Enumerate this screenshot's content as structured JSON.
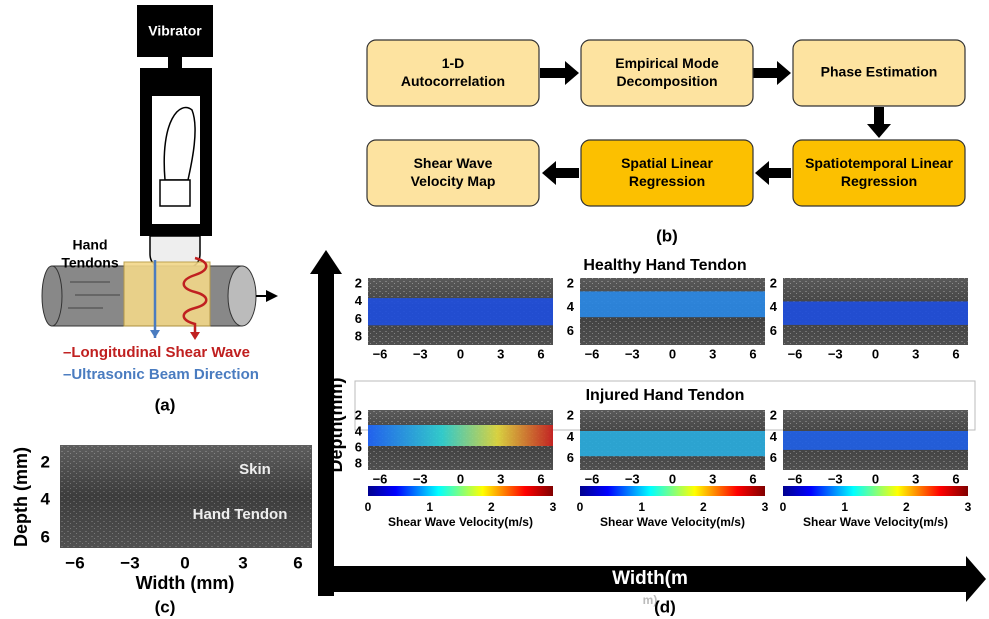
{
  "panel_a": {
    "vibrator": "Vibrator",
    "hand_tendons": [
      "Hand",
      "Tendons"
    ],
    "legend": [
      "Longitudinal Shear Wave",
      "Ultrasonic Beam Direction"
    ],
    "label": "(a)"
  },
  "panel_b": {
    "nodes": [
      "1-D Autocorrelation",
      "Empirical Mode Decomposition",
      "Phase Estimation",
      "Spatiotemporal Linear Regression",
      "Spatial Linear Regression",
      "Shear Wave Velocity Map"
    ],
    "label": "(b)"
  },
  "panel_c": {
    "annotations": [
      "Skin",
      "Hand Tendon"
    ],
    "y_axis_label": "Depth (mm)",
    "x_axis_label": "Width (mm)",
    "yticks": [
      "2",
      "4",
      "6"
    ],
    "xticks": [
      "−6",
      "−3",
      "0",
      "3",
      "6"
    ],
    "label": "(c)"
  },
  "panel_d": {
    "y_axis_label": "Depth(mm)",
    "x_axis_label": "Width(m",
    "x_axis_label_overflow": "m)",
    "label": "(d)",
    "rows": [
      {
        "title": "Healthy Hand Tendon",
        "images": [
          {
            "yticks": [
              "2",
              "4",
              "6",
              "8"
            ],
            "xticks": [
              "−6",
              "−3",
              "0",
              "3",
              "6"
            ]
          },
          {
            "yticks": [
              "2",
              "4",
              "6"
            ],
            "xticks": [
              "−6",
              "−3",
              "0",
              "3",
              "6"
            ]
          },
          {
            "yticks": [
              "2",
              "4",
              "6"
            ],
            "xticks": [
              "−6",
              "−3",
              "0",
              "3",
              "6"
            ]
          }
        ]
      },
      {
        "title": "Injured Hand Tendon",
        "images": [
          {
            "yticks": [
              "2",
              "4",
              "6",
              "8"
            ],
            "xticks": [
              "−6",
              "−3",
              "0",
              "3",
              "6"
            ],
            "colorbar": {
              "ticks": [
                "0",
                "1",
                "2",
                "3"
              ],
              "label": "Shear Wave Velocity(m/s)"
            }
          },
          {
            "yticks": [
              "2",
              "4",
              "6"
            ],
            "xticks": [
              "−6",
              "−3",
              "0",
              "3",
              "6"
            ],
            "colorbar": {
              "ticks": [
                "0",
                "1",
                "2",
                "3"
              ],
              "label": "Shear Wave Velocity(m/s)"
            }
          },
          {
            "yticks": [
              "2",
              "4",
              "6"
            ],
            "xticks": [
              "−6",
              "−3",
              "0",
              "3",
              "6"
            ],
            "colorbar": {
              "ticks": [
                "0",
                "1",
                "2",
                "3"
              ],
              "label": "Shear Wave Velocity(m/s)"
            }
          }
        ]
      }
    ]
  }
}
